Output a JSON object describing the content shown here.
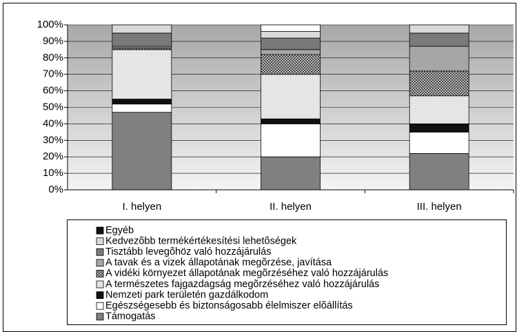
{
  "chart_data": {
    "type": "stacked_bar",
    "categories": [
      "I. helyen",
      "II. helyen",
      "III. helyen"
    ],
    "ylim": [
      0,
      100
    ],
    "yticks": [
      {
        "value": 0,
        "label": "0%"
      },
      {
        "value": 10,
        "label": "10%"
      },
      {
        "value": 20,
        "label": "20%"
      },
      {
        "value": 30,
        "label": "30%"
      },
      {
        "value": 40,
        "label": "40%"
      },
      {
        "value": 50,
        "label": "50%"
      },
      {
        "value": 60,
        "label": "60%"
      },
      {
        "value": 70,
        "label": "70%"
      },
      {
        "value": 80,
        "label": "80%"
      },
      {
        "value": 90,
        "label": "90%"
      },
      {
        "value": 100,
        "label": "100%"
      }
    ],
    "grid": true,
    "legend": "bottom",
    "series": [
      {
        "name": "Támogatás",
        "color": "#808080",
        "values": [
          47,
          20,
          22
        ]
      },
      {
        "name": "Egészségesebb és biztonságosabb élelmiszer elõállítás",
        "color": "#ffffff",
        "values": [
          5,
          20,
          13
        ]
      },
      {
        "name": "Nemzeti park területén gazdálkodom",
        "color": "#111111",
        "values": [
          3,
          3,
          5
        ]
      },
      {
        "name": "A természetes fajgazdagság megõrzéséhez való hozzájárulás",
        "color": "#f2f2f2",
        "pattern": "diagonal",
        "values": [
          30,
          27,
          17
        ]
      },
      {
        "name": "A vidéki környezet állapotának megõrzéséhez való hozzájárulás",
        "color": "#555555",
        "pattern": "crosshatch",
        "values": [
          1,
          12,
          15
        ]
      },
      {
        "name": "A tavak és a vizek állapotának megõrzése, javítása",
        "color": "#a6a6a6",
        "values": [
          1,
          3,
          15
        ]
      },
      {
        "name": "Tisztább levegõhöz való hozzájárulás",
        "color": "#7a7a7a",
        "values": [
          8,
          7,
          8
        ]
      },
      {
        "name": "Kedvezõbb termékértékesítési lehetõségek",
        "color": "#d9d9d9",
        "values": [
          5,
          4,
          5
        ]
      },
      {
        "name": "Egyéb",
        "color": "#ffffff",
        "values": [
          0,
          4,
          0
        ]
      }
    ]
  }
}
